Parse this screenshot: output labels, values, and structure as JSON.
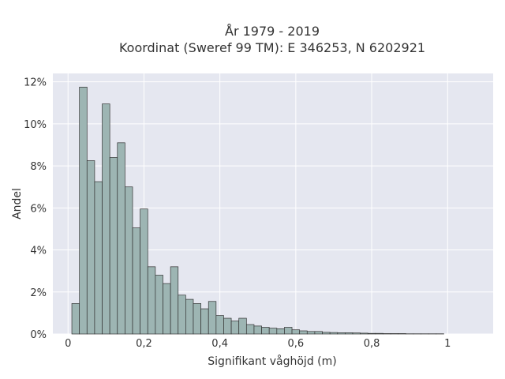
{
  "chart_data": {
    "type": "bar",
    "title_line1": "År 1979 - 2019",
    "title_line2": "Koordinat (Sweref 99 TM): E 346253, N 6202921",
    "xlabel": "Signifikant våghöjd (m)",
    "ylabel": "Andel",
    "xlim": [
      -0.04,
      1.12
    ],
    "ylim": [
      0,
      12.4
    ],
    "grid": true,
    "bin_width": 0.02,
    "bin_start": 0.01,
    "x_ticks": [
      {
        "value": 0,
        "label": "0"
      },
      {
        "value": 0.2,
        "label": "0,2"
      },
      {
        "value": 0.4,
        "label": "0,4"
      },
      {
        "value": 0.6,
        "label": "0,6"
      },
      {
        "value": 0.8,
        "label": "0,8"
      },
      {
        "value": 1.0,
        "label": "1"
      }
    ],
    "y_ticks": [
      {
        "value": 0,
        "label": "0%"
      },
      {
        "value": 2,
        "label": "2%"
      },
      {
        "value": 4,
        "label": "4%"
      },
      {
        "value": 6,
        "label": "6%"
      },
      {
        "value": 8,
        "label": "8%"
      },
      {
        "value": 10,
        "label": "10%"
      },
      {
        "value": 12,
        "label": "12%"
      }
    ],
    "values": [
      1.45,
      11.75,
      8.25,
      7.25,
      10.95,
      8.4,
      9.1,
      7.0,
      5.05,
      5.95,
      3.2,
      2.8,
      2.4,
      3.2,
      1.85,
      1.65,
      1.45,
      1.2,
      1.55,
      0.88,
      0.75,
      0.62,
      0.75,
      0.45,
      0.38,
      0.32,
      0.28,
      0.25,
      0.32,
      0.2,
      0.15,
      0.12,
      0.12,
      0.08,
      0.07,
      0.06,
      0.06,
      0.05,
      0.04,
      0.03,
      0.03,
      0.02,
      0.02,
      0.02,
      0.01,
      0.01,
      0.01,
      0.01,
      0.01
    ]
  },
  "colors": {
    "plot_background": "#e5e7f0",
    "bar_fill": "#9db5b3",
    "bar_stroke": "#333333",
    "grid": "#ffffff",
    "text": "#333333"
  }
}
